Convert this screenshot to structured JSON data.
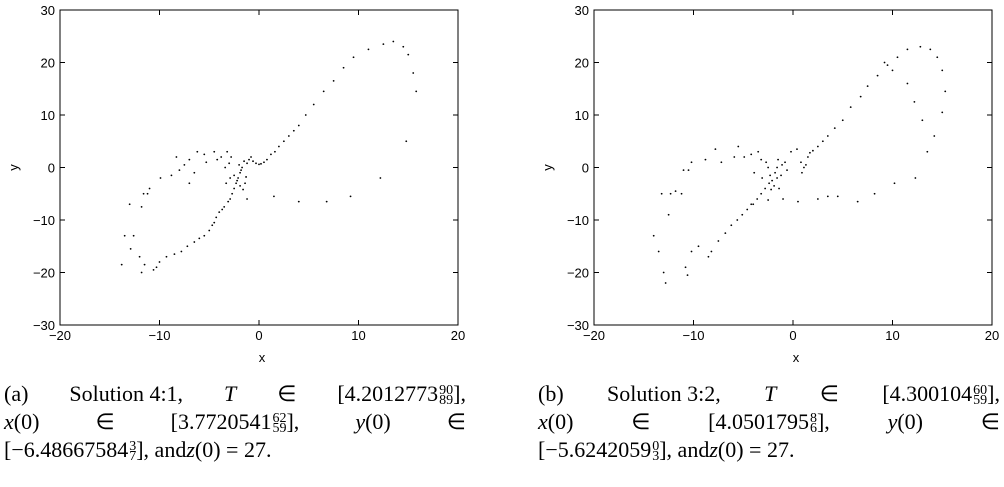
{
  "colors": {
    "axis": "#000000",
    "point": "#000000",
    "background": "#ffffff"
  },
  "chart_data": [
    {
      "type": "scatter",
      "xlabel": "x",
      "ylabel": "y",
      "xlim": [
        -20,
        20
      ],
      "ylim": [
        -30,
        30
      ],
      "xticks": [
        "-20",
        "-10",
        "0",
        "10",
        "20"
      ],
      "yticks": [
        "30",
        "20",
        "10",
        "0",
        "-10",
        "-20",
        "-30"
      ],
      "grid": false,
      "caption": {
        "label": "(a)",
        "solution": "Solution 4:1,",
        "t_var": "T",
        "in_sym": "∈",
        "t_base": "[4.2012773",
        "t_sup": "90",
        "t_sub": "89",
        "t_close": "],",
        "x_var": "x",
        "x_base": "(0)",
        "x_val": "[3.7720541",
        "x_sup": "62",
        "x_sub": "59",
        "x_close": "],",
        "y_var": "y",
        "y_base": "(0)",
        "y_val": "[−6.48667584",
        "y_sup": "3",
        "y_sub": "7",
        "y_close": "], and ",
        "z_var": "z",
        "z_rest": "(0) = 27."
      },
      "points": [
        [
          -13.5,
          -13
        ],
        [
          -13.8,
          -18.5
        ],
        [
          -12.9,
          -15.5
        ],
        [
          -13,
          -7
        ],
        [
          -12.6,
          -13
        ],
        [
          -12,
          -17
        ],
        [
          -11.8,
          -20
        ],
        [
          -11.8,
          -7.5
        ],
        [
          -11.5,
          -18.5
        ],
        [
          -11.6,
          -5
        ],
        [
          -11.2,
          -5
        ],
        [
          -11,
          -4
        ],
        [
          -10.6,
          -19.5
        ],
        [
          -10.3,
          -19
        ],
        [
          -10,
          -18
        ],
        [
          -9.9,
          -2
        ],
        [
          -9.3,
          -17
        ],
        [
          -8.8,
          -1.5
        ],
        [
          -8.5,
          -16.5
        ],
        [
          -8.3,
          2
        ],
        [
          -7.8,
          -16
        ],
        [
          -7.5,
          0.5
        ],
        [
          -7.2,
          -15
        ],
        [
          -7,
          -3
        ],
        [
          -6.5,
          -14.2
        ],
        [
          -6,
          -13.5
        ],
        [
          -6.2,
          3
        ],
        [
          -5.5,
          -13
        ],
        [
          -5.3,
          1
        ],
        [
          -5,
          -12
        ],
        [
          -4.7,
          -11
        ],
        [
          -4.5,
          -10.5
        ],
        [
          -4.3,
          -9.5
        ],
        [
          -4.5,
          3
        ],
        [
          -4,
          -8.5
        ],
        [
          -3.8,
          2
        ],
        [
          -3.7,
          -8
        ],
        [
          -3.5,
          -7.5
        ],
        [
          -3.4,
          0
        ],
        [
          -3.1,
          -6.5
        ],
        [
          -3.2,
          3
        ],
        [
          -2.9,
          -6
        ],
        [
          -2.7,
          -5
        ],
        [
          -2.5,
          -4
        ],
        [
          -2.8,
          2
        ],
        [
          -2.3,
          -3
        ],
        [
          -2.1,
          -2
        ],
        [
          -1.9,
          -1
        ],
        [
          -1.7,
          0
        ],
        [
          -2.5,
          -1.5
        ],
        [
          -2.2,
          -2.5
        ],
        [
          -1.9,
          -3.5
        ],
        [
          -1.6,
          -4.2
        ],
        [
          -1.4,
          -3
        ],
        [
          -1.3,
          -1.8
        ],
        [
          -1.5,
          1.2
        ],
        [
          -1.2,
          0.8
        ],
        [
          -1,
          1.5
        ],
        [
          -0.8,
          2
        ],
        [
          -2,
          0.5
        ],
        [
          -1.8,
          -0.5
        ],
        [
          -2.9,
          -2
        ],
        [
          -3.3,
          -3
        ],
        [
          -0.6,
          1.2
        ],
        [
          -0.3,
          0.8
        ],
        [
          0,
          0.6
        ],
        [
          0.2,
          0.7
        ],
        [
          0.5,
          1
        ],
        [
          0.8,
          1.5
        ],
        [
          1.2,
          2.5
        ],
        [
          1.6,
          3
        ],
        [
          2,
          4
        ],
        [
          2.5,
          5
        ],
        [
          3,
          6
        ],
        [
          3.5,
          7
        ],
        [
          4,
          8
        ],
        [
          4.7,
          10
        ],
        [
          5.5,
          12
        ],
        [
          6.5,
          14.5
        ],
        [
          7.5,
          16.5
        ],
        [
          8.5,
          19
        ],
        [
          9.5,
          21
        ],
        [
          11,
          22.5
        ],
        [
          12.5,
          23.5
        ],
        [
          13.5,
          24
        ],
        [
          14.5,
          23
        ],
        [
          15,
          21.5
        ],
        [
          15.5,
          18
        ],
        [
          15.8,
          14.5
        ],
        [
          14.8,
          5
        ],
        [
          12.2,
          -2
        ],
        [
          9.2,
          -5.5
        ],
        [
          6.8,
          -6.5
        ],
        [
          4,
          -6.5
        ],
        [
          1.5,
          -5.5
        ],
        [
          -1.2,
          -6
        ],
        [
          -3,
          0.8
        ],
        [
          -4.2,
          1.5
        ],
        [
          -5.5,
          2.5
        ],
        [
          -7,
          1.5
        ],
        [
          -6.5,
          -1
        ],
        [
          -8,
          -0.5
        ]
      ]
    },
    {
      "type": "scatter",
      "xlabel": "x",
      "ylabel": "y",
      "xlim": [
        -20,
        20
      ],
      "ylim": [
        -30,
        30
      ],
      "xticks": [
        "-20",
        "-10",
        "0",
        "10",
        "20"
      ],
      "yticks": [
        "30",
        "20",
        "10",
        "0",
        "-10",
        "-20",
        "-30"
      ],
      "grid": false,
      "caption": {
        "label": "(b)",
        "solution": "Solution 3:2,",
        "t_var": "T",
        "in_sym": "∈",
        "t_base": "[4.300104",
        "t_sup": "60",
        "t_sub": "59",
        "t_close": "],",
        "x_var": "x",
        "x_base": "(0)",
        "x_val": "[4.0501795",
        "x_sup": "8",
        "x_sub": "6",
        "x_close": "],",
        "y_var": "y",
        "y_base": "(0)",
        "y_val": "[−5.6242059",
        "y_sup": "0",
        "y_sub": "3",
        "y_close": "], and ",
        "z_var": "z",
        "z_rest": "(0) = 27."
      },
      "points": [
        [
          -14,
          -13
        ],
        [
          -13.5,
          -16
        ],
        [
          -13,
          -20
        ],
        [
          -12.8,
          -22
        ],
        [
          -12.5,
          -9
        ],
        [
          -13.2,
          -5
        ],
        [
          -12.3,
          -5
        ],
        [
          -11.8,
          -4.5
        ],
        [
          -11.2,
          -5
        ],
        [
          -11,
          -0.5
        ],
        [
          -10.8,
          -19
        ],
        [
          -10.6,
          -20.5
        ],
        [
          -10.2,
          -16
        ],
        [
          -10.5,
          -0.5
        ],
        [
          -10.2,
          1
        ],
        [
          -9.5,
          -15
        ],
        [
          -8.5,
          -17
        ],
        [
          -8.8,
          1.5
        ],
        [
          -8.2,
          -16
        ],
        [
          -7.5,
          -14
        ],
        [
          -7.8,
          3.5
        ],
        [
          -7.2,
          1
        ],
        [
          -6.8,
          -12.5
        ],
        [
          -6.2,
          -11
        ],
        [
          -5.9,
          2
        ],
        [
          -5.6,
          -10
        ],
        [
          -5.5,
          4
        ],
        [
          -5.1,
          -9
        ],
        [
          -4.9,
          2
        ],
        [
          -4.6,
          -8
        ],
        [
          -4.2,
          2.5
        ],
        [
          -4,
          -7
        ],
        [
          -3.9,
          -1
        ],
        [
          -3.6,
          -6
        ],
        [
          -3.5,
          3
        ],
        [
          -3.2,
          -5
        ],
        [
          -3.1,
          -2
        ],
        [
          -2.8,
          -4
        ],
        [
          -2.7,
          1
        ],
        [
          -2.4,
          -3
        ],
        [
          -2.3,
          -1.5
        ],
        [
          -2.1,
          -2.5
        ],
        [
          -1.8,
          -1
        ],
        [
          -1.6,
          0
        ],
        [
          -1.4,
          -4
        ],
        [
          -1.9,
          -3.5
        ],
        [
          -2.2,
          -4.2
        ],
        [
          -1.6,
          -2
        ],
        [
          -1.2,
          -1.5
        ],
        [
          -1.5,
          1.5
        ],
        [
          -1.1,
          0.5
        ],
        [
          -0.8,
          1
        ],
        [
          -0.6,
          -0.5
        ],
        [
          -2.5,
          0
        ],
        [
          -3.2,
          1.5
        ],
        [
          -0.2,
          3
        ],
        [
          0.4,
          3.5
        ],
        [
          0.8,
          1
        ],
        [
          0.9,
          -1
        ],
        [
          1.1,
          0
        ],
        [
          1.3,
          0.5
        ],
        [
          1.5,
          2
        ],
        [
          1.7,
          2.8
        ],
        [
          2,
          3.2
        ],
        [
          2.5,
          4
        ],
        [
          3,
          5
        ],
        [
          3.5,
          6
        ],
        [
          4.2,
          7.5
        ],
        [
          5,
          9
        ],
        [
          5.8,
          11.5
        ],
        [
          6.8,
          13.5
        ],
        [
          7.5,
          15.5
        ],
        [
          8.5,
          17.5
        ],
        [
          9.5,
          19.5
        ],
        [
          10.5,
          21
        ],
        [
          11.5,
          22.5
        ],
        [
          12.8,
          23
        ],
        [
          13.8,
          22.5
        ],
        [
          14.5,
          21
        ],
        [
          15,
          18.5
        ],
        [
          15.3,
          14.5
        ],
        [
          15,
          10.5
        ],
        [
          14.2,
          6
        ],
        [
          13.5,
          3
        ],
        [
          12.3,
          -2
        ],
        [
          10.2,
          -3
        ],
        [
          8.2,
          -5
        ],
        [
          6.5,
          -6.5
        ],
        [
          4.5,
          -5.5
        ],
        [
          3.5,
          -5.5
        ],
        [
          2.5,
          -6
        ],
        [
          0.5,
          -6.5
        ],
        [
          -1,
          -6
        ],
        [
          -2.5,
          -6.2
        ],
        [
          -4.2,
          -7
        ],
        [
          13,
          9
        ],
        [
          12.2,
          12.5
        ],
        [
          11.5,
          16
        ],
        [
          10,
          18.5
        ],
        [
          9.2,
          20
        ]
      ]
    }
  ]
}
